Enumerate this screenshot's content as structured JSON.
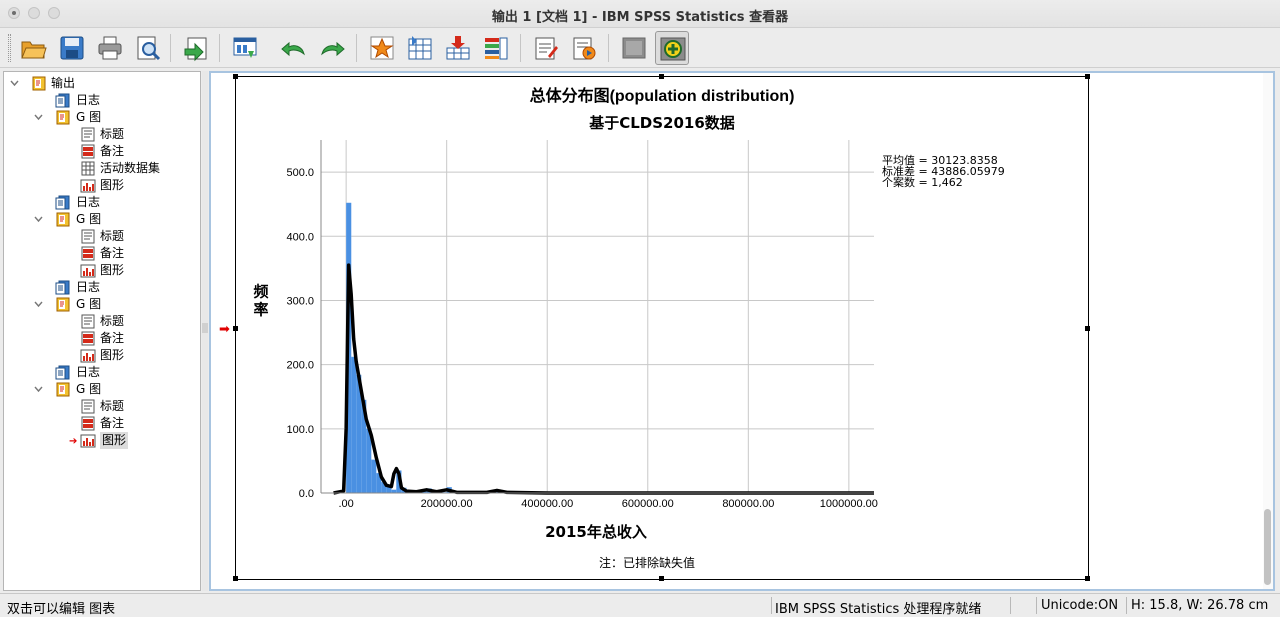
{
  "window": {
    "title": "输出 1 [文档 1] - IBM SPSS Statistics 查看器"
  },
  "toolbar": {
    "buttons": [
      {
        "name": "open-icon"
      },
      {
        "name": "save-icon"
      },
      {
        "name": "print-icon"
      },
      {
        "name": "print-preview-icon"
      },
      {
        "name": "export-icon"
      },
      {
        "name": "recall-dialog-icon"
      },
      {
        "name": "undo-icon"
      },
      {
        "name": "redo-icon"
      },
      {
        "name": "goto-data-icon"
      },
      {
        "name": "goto-case-icon"
      },
      {
        "name": "goto-variable-icon"
      },
      {
        "name": "variables-icon"
      },
      {
        "name": "insert-text-icon"
      },
      {
        "name": "insert-title-icon"
      },
      {
        "name": "hide-icon"
      },
      {
        "name": "designate-window-icon"
      }
    ]
  },
  "outline": {
    "items": [
      {
        "label": "输出",
        "level": 0,
        "icon": "output-book-icon",
        "toggle": "expanded"
      },
      {
        "label": "日志",
        "level": 1,
        "icon": "log-icon"
      },
      {
        "label": "G 图",
        "level": 1,
        "icon": "graph-book-icon",
        "toggle": "expanded"
      },
      {
        "label": "标题",
        "level": 2,
        "icon": "title-icon"
      },
      {
        "label": "备注",
        "level": 2,
        "icon": "notes-icon"
      },
      {
        "label": "活动数据集",
        "level": 2,
        "icon": "dataset-icon"
      },
      {
        "label": "图形",
        "level": 2,
        "icon": "chart-icon"
      },
      {
        "label": "日志",
        "level": 1,
        "icon": "log-icon"
      },
      {
        "label": "G 图",
        "level": 1,
        "icon": "graph-book-icon",
        "toggle": "expanded"
      },
      {
        "label": "标题",
        "level": 2,
        "icon": "title-icon"
      },
      {
        "label": "备注",
        "level": 2,
        "icon": "notes-icon"
      },
      {
        "label": "图形",
        "level": 2,
        "icon": "chart-icon"
      },
      {
        "label": "日志",
        "level": 1,
        "icon": "log-icon"
      },
      {
        "label": "G 图",
        "level": 1,
        "icon": "graph-book-icon",
        "toggle": "expanded"
      },
      {
        "label": "标题",
        "level": 2,
        "icon": "title-icon"
      },
      {
        "label": "备注",
        "level": 2,
        "icon": "notes-icon"
      },
      {
        "label": "图形",
        "level": 2,
        "icon": "chart-icon"
      },
      {
        "label": "日志",
        "level": 1,
        "icon": "log-icon"
      },
      {
        "label": "G 图",
        "level": 1,
        "icon": "graph-book-icon",
        "toggle": "expanded"
      },
      {
        "label": "标题",
        "level": 2,
        "icon": "title-icon"
      },
      {
        "label": "备注",
        "level": 2,
        "icon": "notes-icon"
      },
      {
        "label": "图形",
        "level": 2,
        "icon": "chart-icon",
        "selected": true
      }
    ]
  },
  "chart_data": {
    "type": "bar",
    "title": "总体分布图(population distribution)",
    "subtitle": "基于CLDS2016数据",
    "xlabel": "2015年总收入",
    "ylabel": "频率",
    "footnote": "注：已排除缺失值",
    "stats": [
      "平均值 = 30123.8358",
      "标准差 = 43886.05979",
      "个案数 = 1,462"
    ],
    "bin_width": 10000,
    "xlim": [
      -50000,
      1050000
    ],
    "ylim": [
      0,
      550
    ],
    "x_ticks": [
      0,
      200000,
      400000,
      600000,
      800000,
      1000000
    ],
    "x_tick_labels": [
      ".00",
      "200000.00",
      "400000.00",
      "600000.00",
      "800000.00",
      "1000000.00"
    ],
    "y_ticks": [
      0,
      100,
      200,
      300,
      400,
      500
    ],
    "y_tick_labels": [
      "0.0",
      "100.0",
      "200.0",
      "300.0",
      "400.0",
      "500.0"
    ],
    "bins_start": [
      0,
      10000,
      20000,
      30000,
      40000,
      50000,
      60000,
      70000,
      80000,
      90000,
      100000,
      110000,
      120000,
      130000,
      140000,
      150000,
      160000,
      170000,
      180000,
      190000,
      200000,
      210000,
      220000,
      230000,
      240000,
      250000,
      260000,
      270000,
      280000,
      290000,
      300000
    ],
    "values": [
      452,
      212,
      184,
      145,
      100,
      52,
      31,
      17,
      12,
      5,
      35,
      8,
      4,
      3,
      2,
      5,
      7,
      3,
      2,
      1,
      9,
      3,
      2,
      1,
      1,
      1,
      1,
      1,
      1,
      1,
      3
    ],
    "curve": [
      [
        -25000,
        0
      ],
      [
        -5000,
        3
      ],
      [
        0,
        100
      ],
      [
        5000,
        355
      ],
      [
        10000,
        310
      ],
      [
        15000,
        240
      ],
      [
        20000,
        205
      ],
      [
        30000,
        160
      ],
      [
        40000,
        115
      ],
      [
        50000,
        90
      ],
      [
        60000,
        55
      ],
      [
        70000,
        25
      ],
      [
        80000,
        12
      ],
      [
        90000,
        10
      ],
      [
        95000,
        30
      ],
      [
        100000,
        38
      ],
      [
        105000,
        30
      ],
      [
        110000,
        8
      ],
      [
        120000,
        3
      ],
      [
        140000,
        2
      ],
      [
        160000,
        5
      ],
      [
        180000,
        2
      ],
      [
        200000,
        5
      ],
      [
        220000,
        1
      ],
      [
        280000,
        1
      ],
      [
        300000,
        4
      ],
      [
        320000,
        1
      ],
      [
        400000,
        0
      ],
      [
        1050000,
        0
      ]
    ],
    "bar_color": "#4a90e2",
    "curve_color": "#000000",
    "grid": true
  },
  "statusbar": {
    "left": "双击可以编辑 图表",
    "processor": "IBM SPSS Statistics 处理程序就绪",
    "unicode": "Unicode:ON",
    "dimensions": "H: 15.8, W: 26.78 cm"
  }
}
